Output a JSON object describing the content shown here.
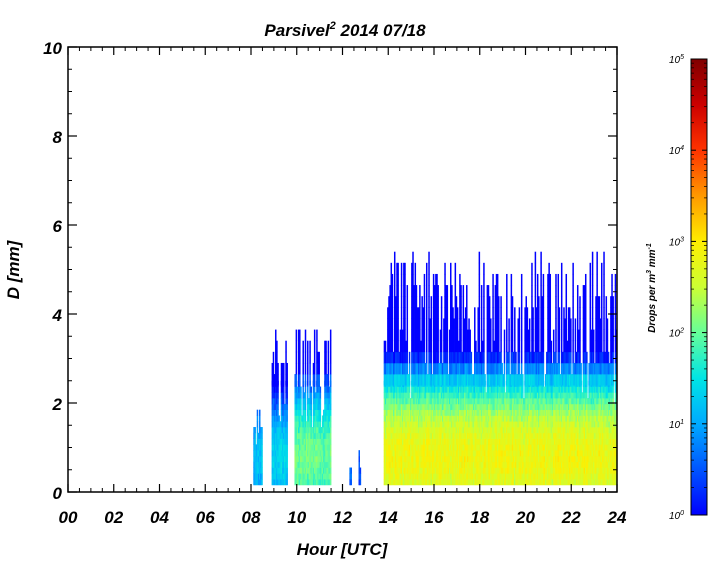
{
  "chart_data": {
    "type": "heatmap",
    "title": {
      "main": "Parsivel",
      "sup": "2",
      "rest": " 2014 07/18"
    },
    "xlabel": "Hour [UTC]",
    "ylabel": "D [mm]",
    "xlim": [
      0,
      24
    ],
    "ylim": [
      0,
      10
    ],
    "x_ticks": [
      "00",
      "02",
      "04",
      "06",
      "08",
      "10",
      "12",
      "14",
      "16",
      "18",
      "20",
      "22",
      "24"
    ],
    "y_ticks": [
      "0",
      "2",
      "4",
      "6",
      "8",
      "10"
    ],
    "colorbar": {
      "title": {
        "pre": "Drops per m",
        "sup1": "3",
        "mid": " mm",
        "sup2": "-1"
      },
      "scale": "log",
      "range": [
        1,
        100000
      ],
      "tick_base": "10",
      "tick_exponents": [
        "0",
        "1",
        "2",
        "3",
        "4",
        "5"
      ],
      "colormap": [
        "#0000ff",
        "#0055ff",
        "#00aaff",
        "#00e5e5",
        "#66ff99",
        "#ccff33",
        "#ffee00",
        "#ff9900",
        "#ff3300",
        "#cc0000",
        "#800000"
      ]
    },
    "precipitation_periods_utc": [
      {
        "start": 8.1,
        "end": 8.5,
        "max_diameter_mm": 1.8,
        "peak_concentration": 20
      },
      {
        "start": 8.9,
        "end": 9.6,
        "max_diameter_mm": 3.7,
        "peak_concentration": 30
      },
      {
        "start": 9.9,
        "end": 11.5,
        "max_diameter_mm": 3.7,
        "peak_concentration": 150
      },
      {
        "start": 12.3,
        "end": 12.4,
        "max_diameter_mm": 1.0,
        "peak_concentration": 10
      },
      {
        "start": 12.7,
        "end": 12.8,
        "max_diameter_mm": 0.9,
        "peak_concentration": 5
      },
      {
        "start": 13.8,
        "end": 24.0,
        "max_diameter_mm": 5.2,
        "peak_concentration": 900
      }
    ]
  }
}
